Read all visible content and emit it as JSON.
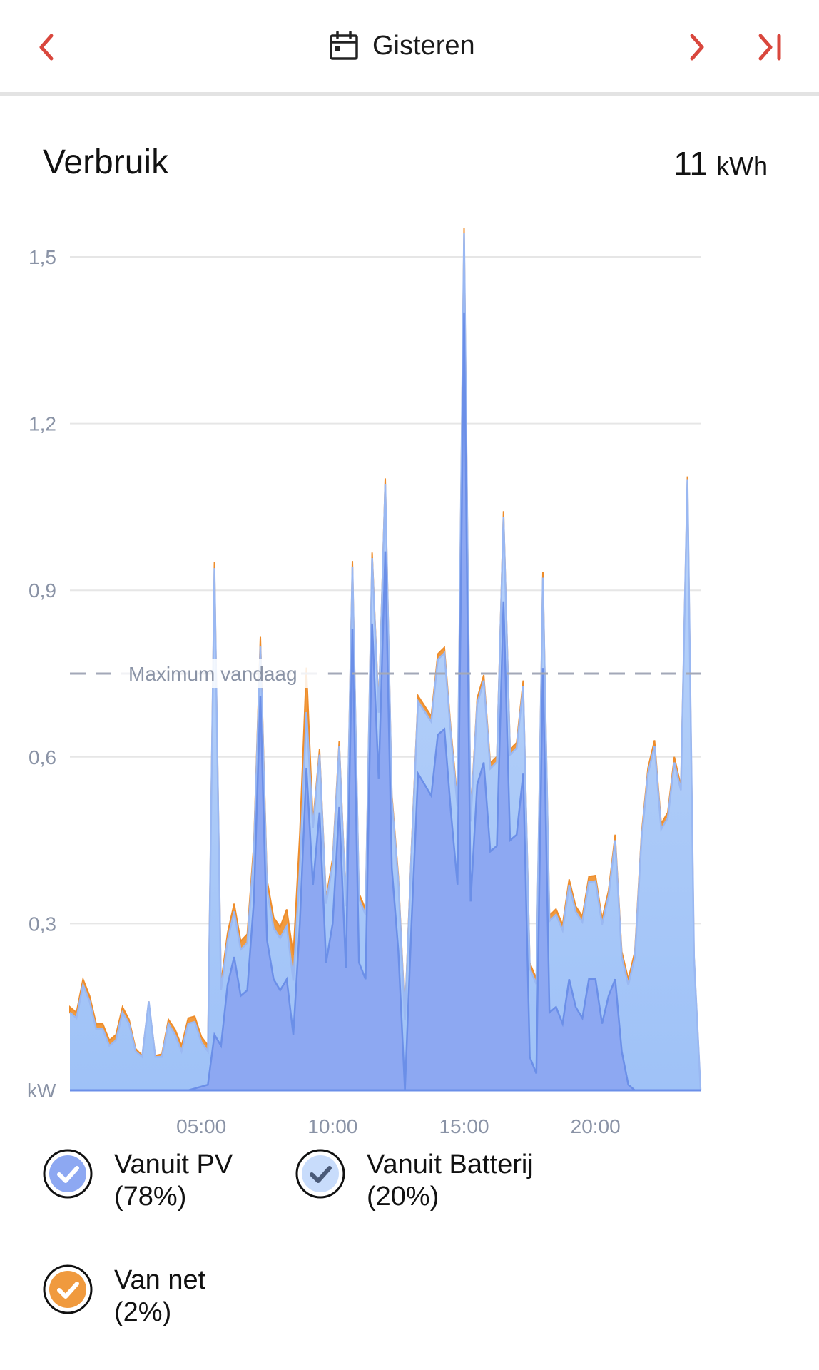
{
  "header": {
    "date_label": "Gisteren",
    "accent_color": "#d9473d"
  },
  "card": {
    "title": "Verbruik",
    "total_value": "11",
    "total_unit": "kWh"
  },
  "chart_data": {
    "type": "area",
    "title": "Verbruik",
    "ylabel": "kW",
    "xlabel": "",
    "ylim": [
      0,
      1.5
    ],
    "xlim": [
      0,
      24
    ],
    "y_ticks": [
      0.3,
      0.6,
      0.9,
      1.2,
      1.5
    ],
    "y_tick_labels": [
      "0,3",
      "0,6",
      "0,9",
      "1,2",
      "1,5"
    ],
    "y_unit_label": "kW",
    "x_ticks": [
      5,
      10,
      15,
      20
    ],
    "x_tick_labels": [
      "05:00",
      "10:00",
      "15:00",
      "20:00"
    ],
    "grid": true,
    "reference_line": {
      "label": "Maximum vandaag",
      "value": 0.75
    },
    "series": [
      {
        "name": "Vanuit PV",
        "color": "#8da8f2",
        "stroke": "#6b8fe8",
        "points": [
          [
            0,
            0
          ],
          [
            4.5,
            0
          ],
          [
            5.25,
            0.01
          ],
          [
            5.5,
            0.1
          ],
          [
            5.75,
            0.08
          ],
          [
            6.0,
            0.19
          ],
          [
            6.25,
            0.24
          ],
          [
            6.5,
            0.17
          ],
          [
            6.75,
            0.18
          ],
          [
            7.0,
            0.34
          ],
          [
            7.25,
            0.71
          ],
          [
            7.5,
            0.27
          ],
          [
            7.75,
            0.2
          ],
          [
            8.0,
            0.18
          ],
          [
            8.25,
            0.2
          ],
          [
            8.5,
            0.1
          ],
          [
            8.75,
            0.3
          ],
          [
            9.0,
            0.58
          ],
          [
            9.25,
            0.37
          ],
          [
            9.5,
            0.5
          ],
          [
            9.75,
            0.23
          ],
          [
            10.0,
            0.3
          ],
          [
            10.25,
            0.51
          ],
          [
            10.5,
            0.22
          ],
          [
            10.75,
            0.83
          ],
          [
            11.0,
            0.23
          ],
          [
            11.25,
            0.2
          ],
          [
            11.5,
            0.84
          ],
          [
            11.75,
            0.56
          ],
          [
            12.0,
            0.97
          ],
          [
            12.25,
            0.4
          ],
          [
            12.5,
            0.25
          ],
          [
            12.75,
            0.0
          ],
          [
            13.0,
            0.3
          ],
          [
            13.25,
            0.57
          ],
          [
            13.5,
            0.55
          ],
          [
            13.75,
            0.53
          ],
          [
            14.0,
            0.64
          ],
          [
            14.25,
            0.65
          ],
          [
            14.5,
            0.5
          ],
          [
            14.75,
            0.37
          ],
          [
            15.0,
            1.4
          ],
          [
            15.25,
            0.34
          ],
          [
            15.5,
            0.55
          ],
          [
            15.75,
            0.59
          ],
          [
            16.0,
            0.43
          ],
          [
            16.25,
            0.44
          ],
          [
            16.5,
            0.88
          ],
          [
            16.75,
            0.45
          ],
          [
            17.0,
            0.46
          ],
          [
            17.25,
            0.57
          ],
          [
            17.5,
            0.06
          ],
          [
            17.75,
            0.03
          ],
          [
            18.0,
            0.76
          ],
          [
            18.25,
            0.14
          ],
          [
            18.5,
            0.15
          ],
          [
            18.75,
            0.12
          ],
          [
            19.0,
            0.2
          ],
          [
            19.25,
            0.15
          ],
          [
            19.5,
            0.13
          ],
          [
            19.75,
            0.2
          ],
          [
            20.0,
            0.2
          ],
          [
            20.25,
            0.12
          ],
          [
            20.5,
            0.17
          ],
          [
            20.75,
            0.2
          ],
          [
            21.0,
            0.07
          ],
          [
            21.25,
            0.01
          ],
          [
            21.5,
            0.0
          ],
          [
            24,
            0
          ]
        ]
      },
      {
        "name": "Vanuit Batterij",
        "color": "#b2d0fb",
        "stroke": "#9ab8f2",
        "points": [
          [
            0,
            0.14
          ],
          [
            0.25,
            0.13
          ],
          [
            0.5,
            0.19
          ],
          [
            0.75,
            0.16
          ],
          [
            1.0,
            0.11
          ],
          [
            1.25,
            0.11
          ],
          [
            1.5,
            0.08
          ],
          [
            1.75,
            0.09
          ],
          [
            2.0,
            0.14
          ],
          [
            2.25,
            0.12
          ],
          [
            2.5,
            0.07
          ],
          [
            2.75,
            0.06
          ],
          [
            3.0,
            0.16
          ],
          [
            3.25,
            0.06
          ],
          [
            3.5,
            0.06
          ],
          [
            3.75,
            0.12
          ],
          [
            4.0,
            0.1
          ],
          [
            4.25,
            0.07
          ],
          [
            4.5,
            0.12
          ],
          [
            4.75,
            0.12
          ],
          [
            5.0,
            0.08
          ],
          [
            5.25,
            0.06
          ],
          [
            5.5,
            0.84
          ],
          [
            5.75,
            0.1
          ],
          [
            6.0,
            0.08
          ],
          [
            20.5,
            0.18
          ],
          [
            20.75,
            0.25
          ],
          [
            21.0,
            0.17
          ],
          [
            21.25,
            0.18
          ],
          [
            21.5,
            0.24
          ],
          [
            21.75,
            0.45
          ],
          [
            22.0,
            0.57
          ],
          [
            22.25,
            0.62
          ],
          [
            22.5,
            0.47
          ],
          [
            22.75,
            0.49
          ],
          [
            23.0,
            0.59
          ],
          [
            23.25,
            0.54
          ],
          [
            23.5,
            1.1
          ],
          [
            23.75,
            0.24
          ],
          [
            24,
            0
          ]
        ]
      },
      {
        "name": "Van net",
        "color": "#f09a3e",
        "stroke": "#ee8c2a",
        "points": [
          [
            0,
            0.01
          ],
          [
            0.5,
            0.01
          ],
          [
            1.0,
            0.01
          ],
          [
            1.5,
            0.01
          ],
          [
            2.0,
            0.01
          ],
          [
            3.0,
            0.0
          ],
          [
            4.0,
            0.01
          ],
          [
            5.0,
            0.01
          ],
          [
            8.0,
            0.02
          ],
          [
            8.25,
            0.03
          ],
          [
            9.0,
            0.08
          ],
          [
            9.25,
            0.01
          ],
          [
            21.0,
            0.01
          ],
          [
            22.25,
            0.01
          ],
          [
            23.0,
            0.01
          ],
          [
            24,
            0
          ]
        ]
      }
    ],
    "legend": [
      {
        "name": "Vanuit PV",
        "share": "(78%)",
        "color": "#8da8f2"
      },
      {
        "name": "Vanuit Batterij",
        "share": "(20%)",
        "color": "#c8dcfb"
      },
      {
        "name": "Van net",
        "share": "(2%)",
        "color": "#f09a3e"
      }
    ]
  }
}
